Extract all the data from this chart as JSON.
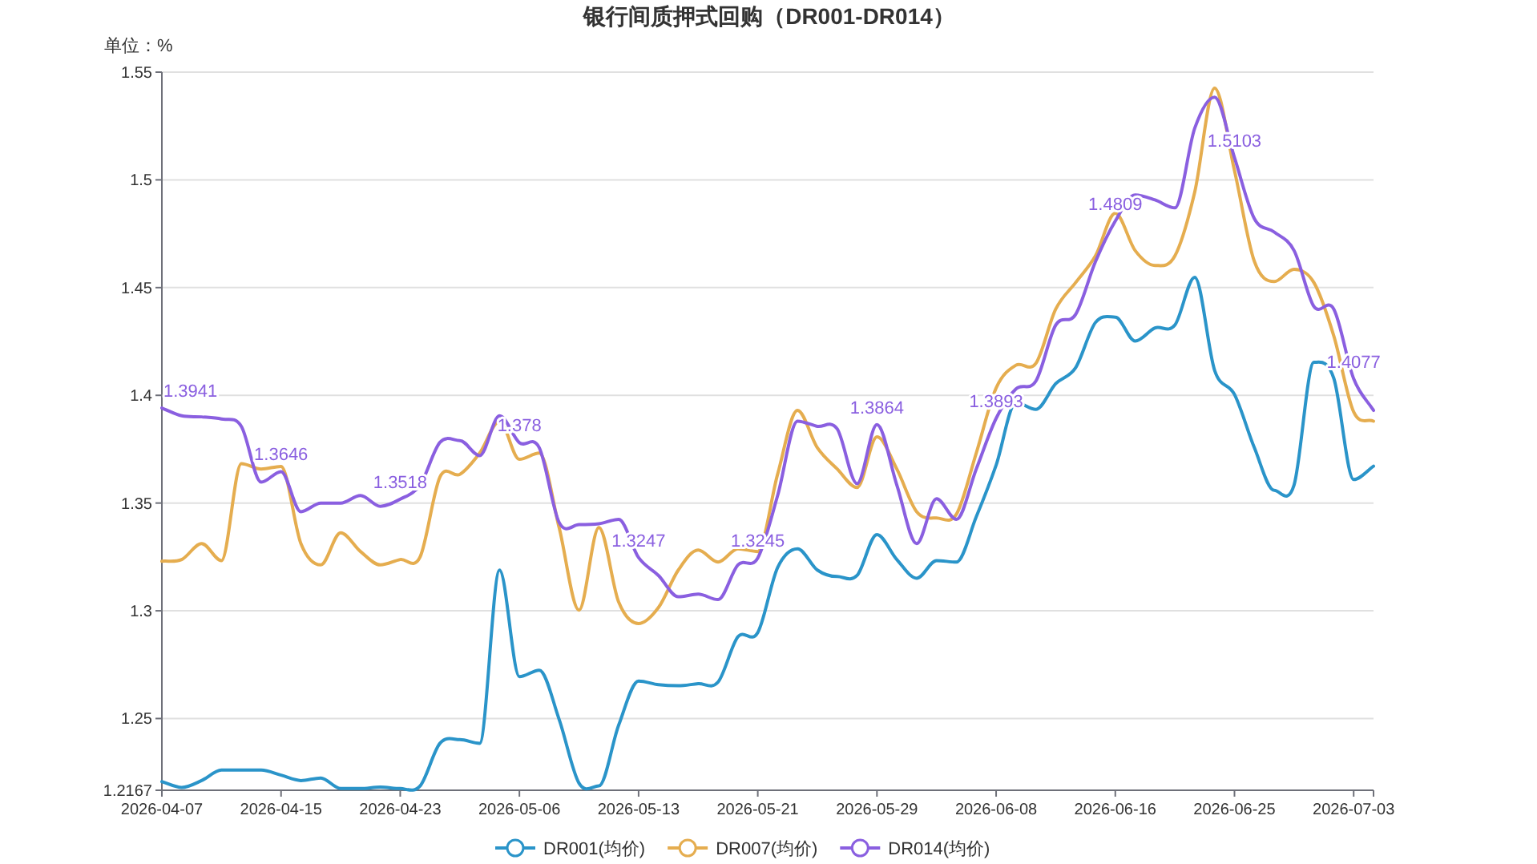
{
  "chart_data": {
    "type": "line",
    "title": "银行间质押式回购（DR001-DR014）",
    "ylabel": "单位：%",
    "categories": [
      "2026-04-07",
      null,
      null,
      null,
      null,
      null,
      "2026-04-15",
      null,
      null,
      null,
      null,
      null,
      "2026-04-23",
      null,
      null,
      null,
      null,
      null,
      "2026-05-06",
      null,
      null,
      null,
      null,
      null,
      "2026-05-13",
      null,
      null,
      null,
      null,
      null,
      "2026-05-21",
      null,
      null,
      null,
      null,
      null,
      "2026-05-29",
      null,
      null,
      null,
      null,
      null,
      "2026-06-08",
      null,
      null,
      null,
      null,
      null,
      "2026-06-16",
      null,
      null,
      null,
      null,
      null,
      "2026-06-25",
      null,
      null,
      null,
      null,
      null,
      "2026-07-03",
      null
    ],
    "ylim": [
      1.2167,
      1.55
    ],
    "yticks": [
      1.2167,
      1.25,
      1.3,
      1.35,
      1.4,
      1.45,
      1.5,
      1.55
    ],
    "grid": "y",
    "legend": "bottom",
    "line_style": "solid",
    "series": [
      {
        "name": "DR001(均价)",
        "color": "#2a94c9",
        "values": [
          1.2207,
          1.218,
          1.2212,
          1.2261,
          1.2261,
          1.2261,
          1.2237,
          1.2212,
          1.2224,
          1.2175,
          1.2175,
          1.2182,
          1.2175,
          1.2187,
          1.2385,
          1.2402,
          1.2385,
          1.3189,
          1.2694,
          1.2724,
          1.2496,
          1.22,
          1.2187,
          1.247,
          1.2674,
          1.2657,
          1.2652,
          1.2662,
          1.2669,
          1.2879,
          1.2899,
          1.3201,
          1.3288,
          1.3189,
          1.3159,
          1.3164,
          1.3354,
          1.3238,
          1.3151,
          1.3233,
          1.3226,
          1.3436,
          1.3676,
          1.3967,
          1.3935,
          1.4054,
          1.4128,
          1.4338,
          1.4363,
          1.4252,
          1.4313,
          1.4326,
          1.4548,
          1.4116,
          1.4004,
          1.3757,
          1.3559,
          1.3584,
          1.4153,
          1.4079,
          1.3609,
          1.3671
        ]
      },
      {
        "name": "DR007(均价)",
        "color": "#e5ad4f",
        "values": [
          1.323,
          1.3238,
          1.3312,
          1.3233,
          1.3683,
          1.3658,
          1.367,
          1.3312,
          1.3213,
          1.3362,
          1.3275,
          1.3213,
          1.3238,
          1.325,
          1.3621,
          1.3633,
          1.3732,
          1.388,
          1.3703,
          1.3732,
          1.3386,
          1.3003,
          1.3386,
          1.304,
          1.2941,
          1.3015,
          1.3189,
          1.3282,
          1.3226,
          1.3288,
          1.3275,
          1.3634,
          1.393,
          1.3757,
          1.3658,
          1.3572,
          1.3807,
          1.3658,
          1.346,
          1.3431,
          1.3448,
          1.3732,
          1.4034,
          1.414,
          1.4148,
          1.44,
          1.4523,
          1.4647,
          1.4845,
          1.4672,
          1.4603,
          1.4647,
          1.4944,
          1.5426,
          1.5043,
          1.4622,
          1.4528,
          1.4585,
          1.4523,
          1.4276,
          1.3923,
          1.388
        ]
      },
      {
        "name": "DR014(均价)",
        "color": "#8a5fe0",
        "values": [
          1.3941,
          1.3905,
          1.39,
          1.389,
          1.3856,
          1.3597,
          1.3646,
          1.346,
          1.35,
          1.35,
          1.3535,
          1.3485,
          1.3518,
          1.3584,
          1.3782,
          1.379,
          1.372,
          1.3905,
          1.378,
          1.3757,
          1.341,
          1.34,
          1.3404,
          1.3424,
          1.3247,
          1.3164,
          1.3065,
          1.3077,
          1.3052,
          1.3213,
          1.3245,
          1.3535,
          1.388,
          1.3856,
          1.3844,
          1.359,
          1.3864,
          1.3584,
          1.3312,
          1.352,
          1.3424,
          1.3658,
          1.3893,
          1.403,
          1.4066,
          1.4326,
          1.4375,
          1.462,
          1.4809,
          1.493,
          1.4907,
          1.487,
          1.524,
          1.5384,
          1.5103,
          1.482,
          1.4758,
          1.4672,
          1.4412,
          1.44,
          1.4077,
          1.393
        ],
        "value_labels": [
          "1.3941",
          null,
          null,
          null,
          null,
          null,
          "1.3646",
          null,
          null,
          null,
          null,
          null,
          "1.3518",
          null,
          null,
          null,
          null,
          null,
          "1.378",
          null,
          null,
          null,
          null,
          null,
          "1.3247",
          null,
          null,
          null,
          null,
          null,
          "1.3245",
          null,
          null,
          null,
          null,
          null,
          "1.3864",
          null,
          null,
          null,
          null,
          null,
          "1.3893",
          null,
          null,
          null,
          null,
          null,
          "1.4809",
          null,
          null,
          null,
          null,
          null,
          "1.5103",
          null,
          null,
          null,
          null,
          null,
          "1.4077",
          null
        ]
      }
    ]
  }
}
